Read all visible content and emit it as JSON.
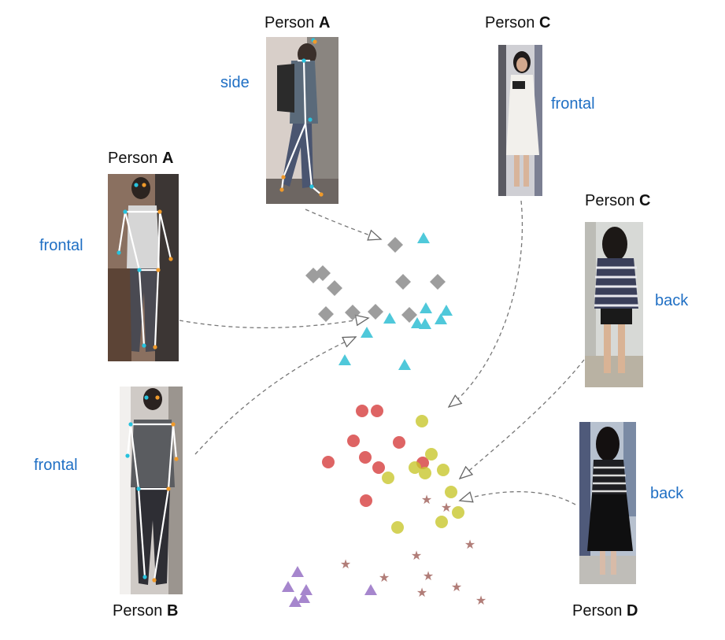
{
  "persons": [
    {
      "id": "p1",
      "name": "Person",
      "letter": "A",
      "view": "side"
    },
    {
      "id": "p2",
      "name": "Person",
      "letter": "C",
      "view": "frontal"
    },
    {
      "id": "p3",
      "name": "Person",
      "letter": "A",
      "view": "frontal"
    },
    {
      "id": "p4",
      "name": "Person",
      "letter": "C",
      "view": "back"
    },
    {
      "id": "p5",
      "name": "Person",
      "letter": "B",
      "view": "frontal"
    },
    {
      "id": "p6",
      "name": "Person",
      "letter": "D",
      "view": "back"
    }
  ],
  "colors": {
    "diamond": "#8c8c8c",
    "triangle_cyan": "#3cc3d6",
    "circle_red": "#d94a4a",
    "circle_yellow": "#c9c72e",
    "star_brown": "#a9706a",
    "triangle_purple": "#9d7ac8",
    "view_label": "#1f6fc4",
    "skeleton_dot_cyan": "#27c2dd",
    "skeleton_dot_orange": "#f09a2a"
  }
}
